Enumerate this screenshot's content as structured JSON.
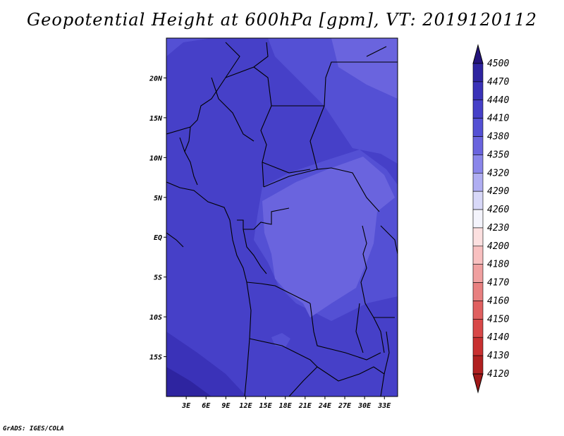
{
  "title": "Geopotential Height at 600hPa [gpm], VT: 2019120112",
  "credit": "GrADS: IGES/COLA",
  "map": {
    "lon_range": [
      0,
      35
    ],
    "lat_range": [
      -20,
      25
    ],
    "lat_ticks": [
      {
        "value": 20,
        "label": "20N"
      },
      {
        "value": 15,
        "label": "15N"
      },
      {
        "value": 10,
        "label": "10N"
      },
      {
        "value": 5,
        "label": "5N"
      },
      {
        "value": 0,
        "label": "EQ"
      },
      {
        "value": -5,
        "label": "5S"
      },
      {
        "value": -10,
        "label": "10S"
      },
      {
        "value": -15,
        "label": "15S"
      }
    ],
    "lon_ticks": [
      {
        "value": 3,
        "label": "3E"
      },
      {
        "value": 6,
        "label": "6E"
      },
      {
        "value": 9,
        "label": "9E"
      },
      {
        "value": 12,
        "label": "12E"
      },
      {
        "value": 15,
        "label": "15E"
      },
      {
        "value": 18,
        "label": "18E"
      },
      {
        "value": 21,
        "label": "21E"
      },
      {
        "value": 24,
        "label": "24E"
      },
      {
        "value": 27,
        "label": "27E"
      },
      {
        "value": 30,
        "label": "30E"
      },
      {
        "value": 33,
        "label": "33E"
      }
    ]
  },
  "colorbar": {
    "levels": [
      {
        "label": "4500",
        "color": "#2a1a8c"
      },
      {
        "label": "4470",
        "color": "#2e24a0"
      },
      {
        "label": "4440",
        "color": "#3a32b8"
      },
      {
        "label": "4410",
        "color": "#4640c8"
      },
      {
        "label": "4380",
        "color": "#5450d4"
      },
      {
        "label": "4350",
        "color": "#6a64de"
      },
      {
        "label": "4320",
        "color": "#8a86ea"
      },
      {
        "label": "4290",
        "color": "#b0aef2"
      },
      {
        "label": "4260",
        "color": "#d8d8f8"
      },
      {
        "label": "4230",
        "color": "#f4f4fc"
      },
      {
        "label": "4200",
        "color": "#fce0e0"
      },
      {
        "label": "4180",
        "color": "#f8c0c0"
      },
      {
        "label": "4170",
        "color": "#f0a0a0"
      },
      {
        "label": "4160",
        "color": "#e88080"
      },
      {
        "label": "4150",
        "color": "#e06060"
      },
      {
        "label": "4140",
        "color": "#d84848"
      },
      {
        "label": "4130",
        "color": "#c83030"
      },
      {
        "label": "4120",
        "color": "#b02020"
      }
    ],
    "top_arrow_color": "#24147c",
    "bottom_arrow_color": "#a01818"
  }
}
